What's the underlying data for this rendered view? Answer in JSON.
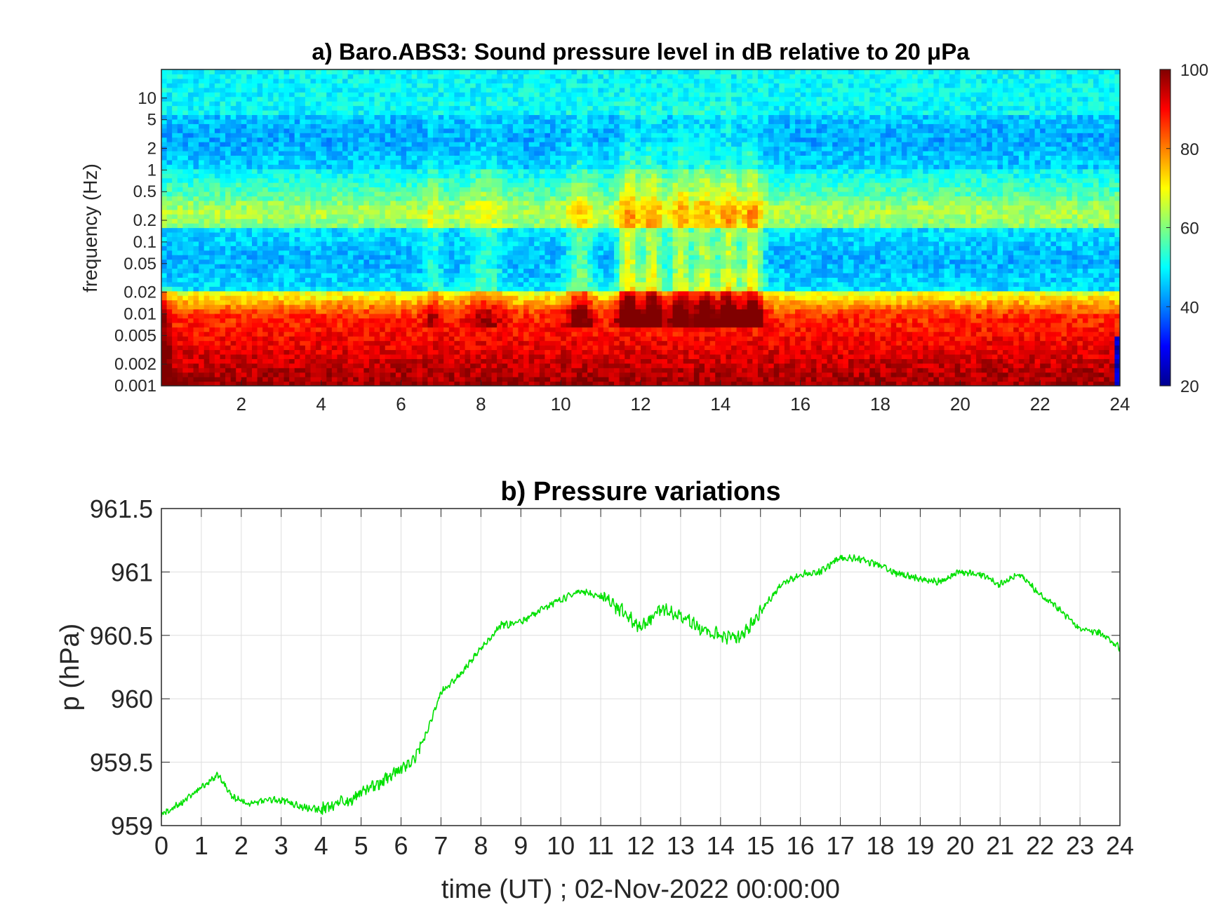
{
  "chart_data": [
    {
      "type": "heatmap",
      "title": "a) Baro.ABS3: Sound pressure level in dB relative to 20 μPa",
      "ylabel": "frequency (Hz)",
      "xlabel": "",
      "yscale": "log",
      "xlim": [
        0,
        24
      ],
      "ylim": [
        0.001,
        25
      ],
      "x_ticks": [
        "2",
        "4",
        "6",
        "8",
        "10",
        "12",
        "14",
        "16",
        "18",
        "20",
        "22",
        "24"
      ],
      "x_tick_values": [
        2,
        4,
        6,
        8,
        10,
        12,
        14,
        16,
        18,
        20,
        22,
        24
      ],
      "y_ticks": [
        "10",
        "5",
        "2",
        "1",
        "0.5",
        "0.2",
        "0.1",
        "0.05",
        "0.02",
        "0.01",
        "0.005",
        "0.002",
        "0.001"
      ],
      "y_tick_values": [
        10,
        5,
        2,
        1,
        0.5,
        0.2,
        0.1,
        0.05,
        0.02,
        0.01,
        0.005,
        0.002,
        0.001
      ],
      "colorbar": {
        "colormap": "jet",
        "range": [
          20,
          100
        ],
        "ticks": [
          "100",
          "80",
          "60",
          "40",
          "20"
        ],
        "tick_values": [
          100,
          80,
          60,
          40,
          20
        ]
      },
      "activity_bursts": [
        {
          "t": 11.7,
          "level": 1.0,
          "width": 0.12
        },
        {
          "t": 12.3,
          "level": 0.9,
          "width": 0.12
        },
        {
          "t": 13.0,
          "level": 0.85,
          "width": 0.12
        },
        {
          "t": 13.6,
          "level": 0.85,
          "width": 0.12
        },
        {
          "t": 14.2,
          "level": 0.9,
          "width": 0.12
        },
        {
          "t": 14.8,
          "level": 0.9,
          "width": 0.12
        },
        {
          "t": 10.5,
          "level": 0.55,
          "width": 0.15
        },
        {
          "t": 8.1,
          "level": 0.35,
          "width": 0.2
        },
        {
          "t": 6.8,
          "level": 0.3,
          "width": 0.1
        }
      ]
    },
    {
      "type": "line",
      "title": "b) Pressure variations",
      "xlabel": "time (UT) ; 02-Nov-2022 00:00:00",
      "ylabel": "p (hPa)",
      "xlim": [
        0,
        24
      ],
      "ylim": [
        959,
        961.5
      ],
      "grid": true,
      "x_ticks": [
        "0",
        "1",
        "2",
        "3",
        "4",
        "5",
        "6",
        "7",
        "8",
        "9",
        "10",
        "11",
        "12",
        "13",
        "14",
        "15",
        "16",
        "17",
        "18",
        "19",
        "20",
        "21",
        "22",
        "23",
        "24"
      ],
      "x_tick_values": [
        0,
        1,
        2,
        3,
        4,
        5,
        6,
        7,
        8,
        9,
        10,
        11,
        12,
        13,
        14,
        15,
        16,
        17,
        18,
        19,
        20,
        21,
        22,
        23,
        24
      ],
      "y_ticks": [
        "961.5",
        "961",
        "960.5",
        "960",
        "959.5",
        "959"
      ],
      "y_tick_values": [
        961.5,
        961,
        960.5,
        960,
        959.5,
        959
      ],
      "line_color": "#00e000",
      "series": [
        {
          "x": [
            0,
            0.5,
            1,
            1.4,
            1.8,
            2.2,
            2.6,
            3,
            3.5,
            4,
            4.5,
            5,
            5.5,
            6,
            6.3,
            6.6,
            7,
            7.5,
            8,
            8.5,
            9,
            9.5,
            10,
            10.5,
            11,
            11.5,
            12,
            12.5,
            13,
            13.5,
            14,
            14.5,
            15,
            15.5,
            16,
            16.5,
            17,
            17.5,
            18,
            18.5,
            19,
            19.5,
            20,
            20.5,
            21,
            21.5,
            22,
            22.5,
            23,
            23.5,
            24
          ],
          "y": [
            959.08,
            959.18,
            959.3,
            959.4,
            959.22,
            959.17,
            959.2,
            959.2,
            959.15,
            959.12,
            959.18,
            959.25,
            959.35,
            959.45,
            959.5,
            959.7,
            960.05,
            960.2,
            960.4,
            960.58,
            960.6,
            960.7,
            960.78,
            960.85,
            960.8,
            960.7,
            960.55,
            960.72,
            960.65,
            960.55,
            960.5,
            960.48,
            960.68,
            960.9,
            960.98,
            961.0,
            961.12,
            961.1,
            961.05,
            960.98,
            960.95,
            960.92,
            961.0,
            960.98,
            960.9,
            960.98,
            960.82,
            960.7,
            960.55,
            960.52,
            960.4
          ]
        }
      ]
    }
  ]
}
